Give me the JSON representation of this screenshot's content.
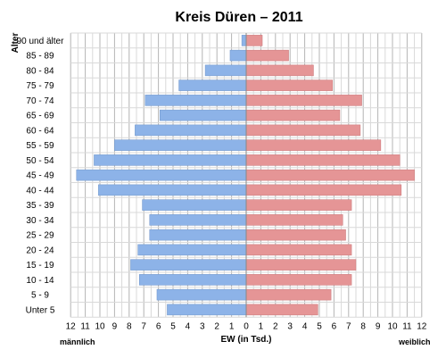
{
  "chart_data": {
    "type": "bar",
    "orientation": "horizontal",
    "variant": "population-pyramid",
    "title": "Kreis Düren – 2011",
    "ylabel": "Alter",
    "xlabel": "EW (in Tsd.)",
    "left_label": "männlich",
    "right_label": "weiblich",
    "xlim": [
      0,
      12
    ],
    "xticks": [
      "12",
      "11",
      "10",
      "9",
      "8",
      "7",
      "6",
      "5",
      "4",
      "3",
      "2",
      "1",
      "0",
      "1",
      "2",
      "3",
      "4",
      "5",
      "6",
      "7",
      "8",
      "9",
      "10",
      "11",
      "12"
    ],
    "grid": true,
    "categories": [
      "90 und älter",
      "85 - 89",
      "80 - 84",
      "75 - 79",
      "70 - 74",
      "65 - 69",
      "60 - 64",
      "55 - 59",
      "50 - 54",
      "45 - 49",
      "40 - 44",
      "35 - 39",
      "30 - 34",
      "25 - 29",
      "20 - 24",
      "15 - 19",
      "10 - 14",
      "5 - 9",
      "Unter 5"
    ],
    "series": [
      {
        "name": "männlich",
        "color": "#8db3e8",
        "values": [
          0.3,
          1.1,
          2.8,
          4.6,
          6.9,
          5.9,
          7.6,
          9.0,
          10.4,
          11.6,
          10.1,
          7.1,
          6.6,
          6.6,
          7.4,
          7.9,
          7.3,
          6.1,
          5.4
        ]
      },
      {
        "name": "weiblich",
        "color": "#e59596",
        "values": [
          1.1,
          2.9,
          4.6,
          5.9,
          7.9,
          6.4,
          7.8,
          9.2,
          10.5,
          11.5,
          10.6,
          7.2,
          6.6,
          6.8,
          7.2,
          7.5,
          7.2,
          5.8,
          4.9
        ]
      }
    ]
  }
}
